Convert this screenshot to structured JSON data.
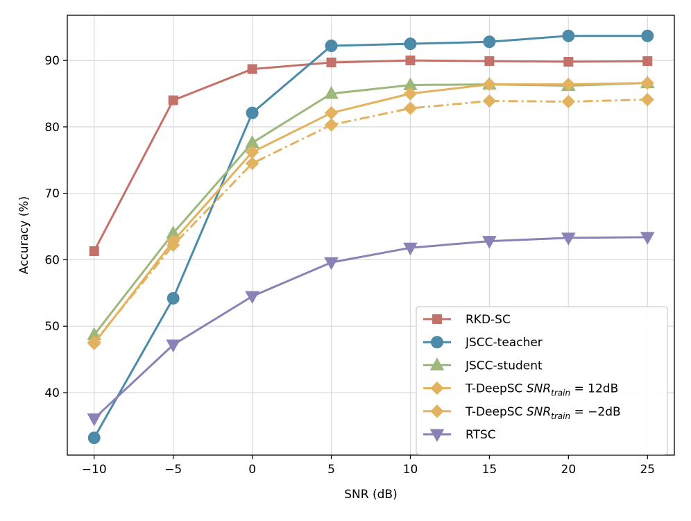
{
  "chart_data": {
    "type": "line",
    "title": "",
    "xlabel": "SNR (dB)",
    "ylabel": "Accuracy (%)",
    "x": [
      -10,
      -5,
      0,
      5,
      10,
      15,
      20,
      25
    ],
    "xticks": [
      -10,
      -5,
      0,
      5,
      10,
      15,
      20,
      25
    ],
    "xtick_labels": [
      "−10",
      "−5",
      "0",
      "5",
      "10",
      "15",
      "20",
      "25"
    ],
    "yticks": [
      40,
      50,
      60,
      70,
      80,
      90
    ],
    "ytick_labels": [
      "40",
      "50",
      "60",
      "70",
      "80",
      "90"
    ],
    "xlim": [
      -11.7,
      26.7
    ],
    "ylim": [
      30.6,
      96.8
    ],
    "grid": true,
    "legend_position": "lower-right",
    "series": [
      {
        "name": "RKD-SC",
        "legend_main": "RKD-SC",
        "legend_sub": "",
        "legend_tail": "",
        "color": "#c4716a",
        "marker": "square",
        "dash": "solid",
        "values": [
          61.3,
          84.0,
          88.7,
          89.7,
          90.0,
          89.9,
          89.8,
          89.9
        ]
      },
      {
        "name": "JSCC-teacher",
        "legend_main": "JSCC-teacher",
        "legend_sub": "",
        "legend_tail": "",
        "color": "#4c8aa9",
        "marker": "circle",
        "dash": "solid",
        "values": [
          33.2,
          54.2,
          82.1,
          92.2,
          92.5,
          92.8,
          93.7,
          93.7
        ]
      },
      {
        "name": "JSCC-student",
        "legend_main": "JSCC-student",
        "legend_sub": "",
        "legend_tail": "",
        "color": "#9cb87a",
        "marker": "triangle-up",
        "dash": "solid",
        "values": [
          48.7,
          64.0,
          77.6,
          85.0,
          86.3,
          86.4,
          86.2,
          86.6
        ]
      },
      {
        "name": "T-DeepSC SNR_train = 12dB",
        "legend_main": "T-DeepSC SNR",
        "legend_sub": "train",
        "legend_tail": " = 12dB",
        "color": "#e3b25e",
        "marker": "diamond",
        "dash": "solid",
        "values": [
          47.4,
          62.8,
          76.2,
          82.1,
          85.0,
          86.4,
          86.4,
          86.6
        ]
      },
      {
        "name": "T-DeepSC SNR_train = −2dB",
        "legend_main": "T-DeepSC SNR",
        "legend_sub": "train",
        "legend_tail": " = −2dB",
        "color": "#e3b25e",
        "marker": "diamond",
        "dash": "dashdot",
        "values": [
          47.6,
          62.2,
          74.5,
          80.3,
          82.8,
          83.9,
          83.8,
          84.1
        ]
      },
      {
        "name": "RTSC",
        "legend_main": "RTSC",
        "legend_sub": "",
        "legend_tail": "",
        "color": "#8a82b6",
        "marker": "triangle-down",
        "dash": "solid",
        "values": [
          36.1,
          47.2,
          54.5,
          59.6,
          61.8,
          62.8,
          63.3,
          63.4
        ]
      }
    ]
  }
}
